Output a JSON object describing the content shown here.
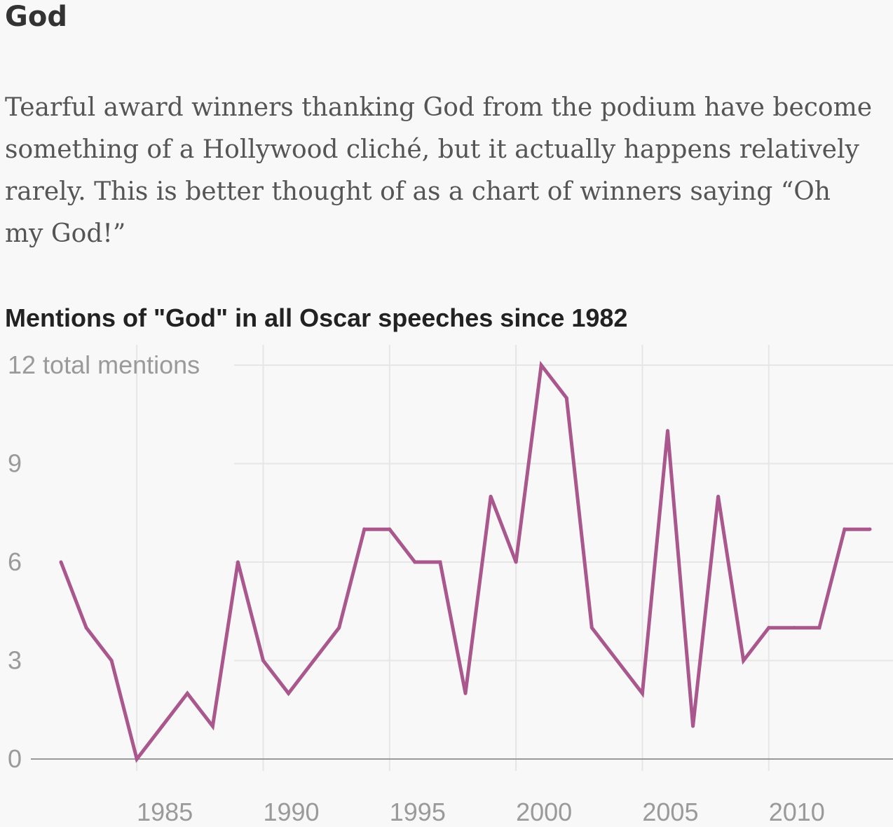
{
  "heading": "God",
  "description": "Tearful award winners thanking God from the podium have become something of a Hollywood cliché, but it actually happens relatively rarely. This is better thought of as a chart of winners saying “Oh my God!”",
  "chart_data": {
    "type": "line",
    "title": "Mentions of \"God\" in all Oscar speeches since 1982",
    "xlabel": "",
    "ylabel": "",
    "xlim": [
      1982,
      2014
    ],
    "ylim": [
      0,
      12
    ],
    "y_ticks": [
      0,
      3,
      6,
      9,
      12
    ],
    "y_tick_labels": [
      "0",
      "3",
      "6",
      "9",
      "12 total mentions"
    ],
    "x_ticks": [
      1985,
      1990,
      1995,
      2000,
      2005,
      2010
    ],
    "x_tick_labels": [
      "1985",
      "1990",
      "1995",
      "2000",
      "2005",
      "2010"
    ],
    "grid": true,
    "series": [
      {
        "color": "#a9578c",
        "x": [
          1982,
          1983,
          1984,
          1985,
          1986,
          1987,
          1988,
          1989,
          1990,
          1991,
          1992,
          1993,
          1994,
          1995,
          1996,
          1997,
          1998,
          1999,
          2000,
          2001,
          2002,
          2003,
          2004,
          2005,
          2006,
          2007,
          2008,
          2009,
          2010,
          2011,
          2012,
          2013,
          2014
        ],
        "values": [
          6,
          4,
          3,
          0,
          1,
          2,
          1,
          6,
          3,
          2,
          3,
          4,
          7,
          7,
          6,
          6,
          2,
          8,
          6,
          12,
          11,
          4,
          3,
          2,
          10,
          1,
          8,
          3,
          4,
          4,
          4,
          7,
          7
        ]
      }
    ]
  }
}
